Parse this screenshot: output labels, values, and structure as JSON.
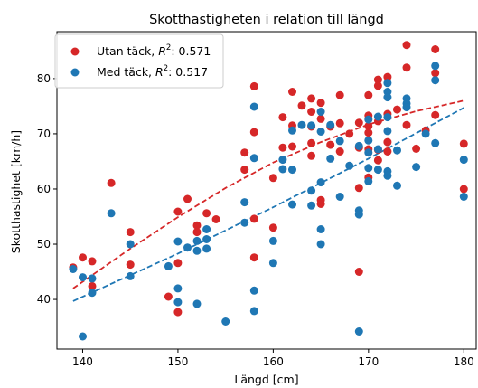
{
  "chart_data": {
    "type": "scatter",
    "title": "Skotthastigheten i relation till längd",
    "xlabel": "Längd [cm]",
    "ylabel": "Skotthastighet [km/h]",
    "xlim": [
      137.3,
      181.3
    ],
    "ylim": [
      31.0,
      88.5
    ],
    "xticks": [
      140,
      150,
      160,
      170,
      180
    ],
    "yticks": [
      40,
      50,
      60,
      70,
      80
    ],
    "grid": false,
    "legend_position": "top-left",
    "series": [
      {
        "name": "Utan täck",
        "legend_base": "Utan täck, ",
        "legend_r2": "R",
        "legend_sup": "2",
        "legend_value": ": 0.571",
        "color": "#d62728",
        "fit": [
          [
            139,
            42.0
          ],
          [
            145,
            49.2
          ],
          [
            150,
            54.9
          ],
          [
            155,
            60.2
          ],
          [
            160,
            64.8
          ],
          [
            165,
            68.5
          ],
          [
            170,
            71.7
          ],
          [
            175,
            74.1
          ],
          [
            180,
            76.0
          ]
        ],
        "points": [
          [
            139,
            45.8
          ],
          [
            140,
            47.6
          ],
          [
            141,
            46.9
          ],
          [
            141,
            42.4
          ],
          [
            143,
            61.1
          ],
          [
            145,
            52.2
          ],
          [
            145,
            46.3
          ],
          [
            149,
            40.5
          ],
          [
            150,
            55.9
          ],
          [
            150,
            46.6
          ],
          [
            150,
            37.7
          ],
          [
            151,
            58.2
          ],
          [
            152,
            53.4
          ],
          [
            152,
            52.2
          ],
          [
            153,
            55.6
          ],
          [
            154,
            54.5
          ],
          [
            157,
            63.5
          ],
          [
            157,
            66.6
          ],
          [
            158,
            78.6
          ],
          [
            158,
            70.3
          ],
          [
            158,
            54.6
          ],
          [
            158,
            47.6
          ],
          [
            160,
            62.0
          ],
          [
            160,
            53.0
          ],
          [
            161,
            73.0
          ],
          [
            161,
            67.5
          ],
          [
            162,
            77.6
          ],
          [
            162,
            71.5
          ],
          [
            162,
            67.7
          ],
          [
            163,
            75.1
          ],
          [
            164,
            76.4
          ],
          [
            164,
            74.0
          ],
          [
            164,
            71.3
          ],
          [
            164,
            68.3
          ],
          [
            164,
            66.0
          ],
          [
            165,
            75.6
          ],
          [
            165,
            72.7
          ],
          [
            165,
            58.0
          ],
          [
            165,
            57.3
          ],
          [
            166,
            71.3
          ],
          [
            166,
            68.0
          ],
          [
            167,
            77.0
          ],
          [
            167,
            71.9
          ],
          [
            167,
            66.8
          ],
          [
            168,
            70.0
          ],
          [
            169,
            72.0
          ],
          [
            169,
            67.5
          ],
          [
            169,
            60.2
          ],
          [
            169,
            45.0
          ],
          [
            170,
            77.0
          ],
          [
            170,
            73.3
          ],
          [
            170,
            71.4
          ],
          [
            170,
            70.2
          ],
          [
            170,
            67.2
          ],
          [
            170,
            62.1
          ],
          [
            171,
            79.8
          ],
          [
            171,
            78.7
          ],
          [
            171,
            72.3
          ],
          [
            171,
            67.1
          ],
          [
            171,
            65.2
          ],
          [
            172,
            80.3
          ],
          [
            172,
            73.6
          ],
          [
            172,
            68.5
          ],
          [
            172,
            66.8
          ],
          [
            173,
            74.4
          ],
          [
            174,
            86.1
          ],
          [
            174,
            82.0
          ],
          [
            174,
            71.6
          ],
          [
            175,
            67.3
          ],
          [
            176,
            70.6
          ],
          [
            177,
            85.3
          ],
          [
            177,
            81.0
          ],
          [
            177,
            73.4
          ],
          [
            180,
            68.2
          ],
          [
            180,
            60.0
          ]
        ]
      },
      {
        "name": "Med täck",
        "legend_base": "Med täck, ",
        "legend_r2": "R",
        "legend_sup": "2",
        "legend_value": ": 0.517",
        "color": "#1f77b4",
        "fit": [
          [
            139,
            39.7
          ],
          [
            150,
            48.3
          ],
          [
            160,
            56.7
          ],
          [
            170,
            65.5
          ],
          [
            180,
            74.7
          ]
        ],
        "points": [
          [
            139,
            45.5
          ],
          [
            140,
            44.0
          ],
          [
            140,
            33.3
          ],
          [
            141,
            43.8
          ],
          [
            141,
            41.2
          ],
          [
            143,
            55.6
          ],
          [
            145,
            50.0
          ],
          [
            145,
            44.2
          ],
          [
            149,
            46.0
          ],
          [
            150,
            50.5
          ],
          [
            150,
            42.0
          ],
          [
            150,
            39.5
          ],
          [
            151,
            49.4
          ],
          [
            152,
            50.6
          ],
          [
            152,
            48.8
          ],
          [
            152,
            39.2
          ],
          [
            153,
            52.7
          ],
          [
            153,
            50.9
          ],
          [
            153,
            49.2
          ],
          [
            155,
            36.0
          ],
          [
            157,
            57.6
          ],
          [
            157,
            53.9
          ],
          [
            158,
            74.9
          ],
          [
            158,
            65.6
          ],
          [
            158,
            41.6
          ],
          [
            158,
            37.9
          ],
          [
            160,
            50.6
          ],
          [
            160,
            46.6
          ],
          [
            161,
            65.3
          ],
          [
            161,
            63.6
          ],
          [
            162,
            70.6
          ],
          [
            162,
            63.5
          ],
          [
            162,
            57.2
          ],
          [
            163,
            71.6
          ],
          [
            164,
            71.5
          ],
          [
            164,
            59.7
          ],
          [
            164,
            57.0
          ],
          [
            165,
            74.0
          ],
          [
            165,
            70.4
          ],
          [
            165,
            61.2
          ],
          [
            165,
            52.7
          ],
          [
            165,
            50.0
          ],
          [
            166,
            71.6
          ],
          [
            166,
            65.5
          ],
          [
            167,
            68.7
          ],
          [
            167,
            58.6
          ],
          [
            168,
            64.2
          ],
          [
            169,
            67.8
          ],
          [
            169,
            56.1
          ],
          [
            169,
            55.4
          ],
          [
            169,
            34.2
          ],
          [
            170,
            72.6
          ],
          [
            170,
            68.8
          ],
          [
            170,
            66.6
          ],
          [
            170,
            63.8
          ],
          [
            170,
            61.4
          ],
          [
            171,
            73.1
          ],
          [
            171,
            67.2
          ],
          [
            171,
            63.5
          ],
          [
            172,
            79.2
          ],
          [
            172,
            77.6
          ],
          [
            172,
            76.6
          ],
          [
            172,
            73.0
          ],
          [
            172,
            70.5
          ],
          [
            172,
            63.2
          ],
          [
            172,
            62.4
          ],
          [
            173,
            67.0
          ],
          [
            173,
            60.6
          ],
          [
            174,
            76.4
          ],
          [
            174,
            75.5
          ],
          [
            174,
            74.8
          ],
          [
            175,
            64.0
          ],
          [
            176,
            70.0
          ],
          [
            177,
            82.3
          ],
          [
            177,
            79.7
          ],
          [
            177,
            68.3
          ],
          [
            180,
            65.3
          ],
          [
            180,
            58.6
          ]
        ]
      }
    ]
  }
}
